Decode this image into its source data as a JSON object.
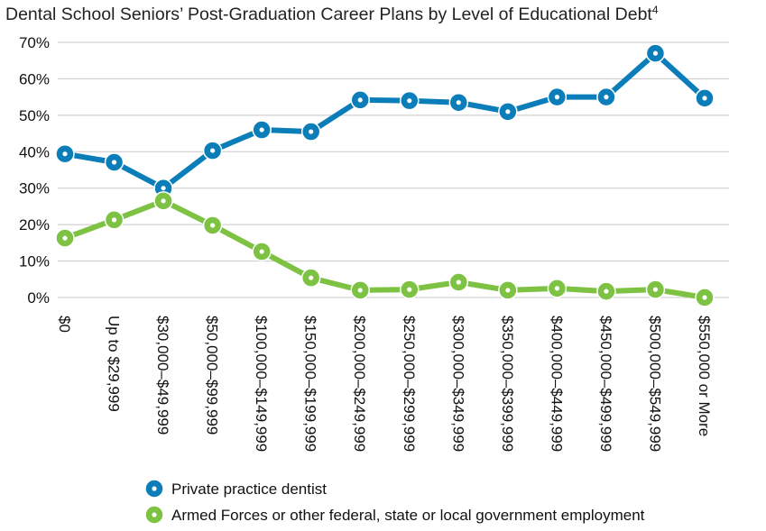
{
  "chart_data": {
    "type": "line",
    "title": "Dental School Seniors’ Post-Graduation Career Plans by Level of Educational Debt",
    "title_footnote": "4",
    "categories": [
      "$0",
      "Up to $29,999",
      "$30,000–$49,999",
      "$50,000–$99,999",
      "$100,000–$149,999",
      "$150,000–$199,999",
      "$200,000–$249,999",
      "$250,000–$299,999",
      "$300,000–$349,999",
      "$350,000–$399,999",
      "$400,000–$449,999",
      "$450,000–$499,999",
      "$500,000–$549,999",
      "$550,000 or More"
    ],
    "series": [
      {
        "name": "Private practice dentist",
        "color": "#0b7db9",
        "values": [
          39.4,
          37.1,
          30,
          40.3,
          46,
          45.5,
          54.2,
          54,
          53.5,
          51,
          55,
          55,
          67,
          54.7
        ]
      },
      {
        "name": "Armed Forces or other federal, state or local government employment",
        "color": "#7dc242",
        "values": [
          16.3,
          21.3,
          26.5,
          19.8,
          12.6,
          5.4,
          2,
          2.2,
          4.2,
          2,
          2.5,
          1.7,
          2.2,
          0
        ]
      }
    ],
    "ylim": [
      0,
      70
    ],
    "yticks": [
      {
        "value": 0,
        "label": "0%"
      },
      {
        "value": 10,
        "label": "10%"
      },
      {
        "value": 20,
        "label": "20%"
      },
      {
        "value": 30,
        "label": "30%"
      },
      {
        "value": 40,
        "label": "40%"
      },
      {
        "value": 50,
        "label": "50%"
      },
      {
        "value": 60,
        "label": "60%"
      },
      {
        "value": 70,
        "label": "70%"
      }
    ],
    "grid": true
  }
}
